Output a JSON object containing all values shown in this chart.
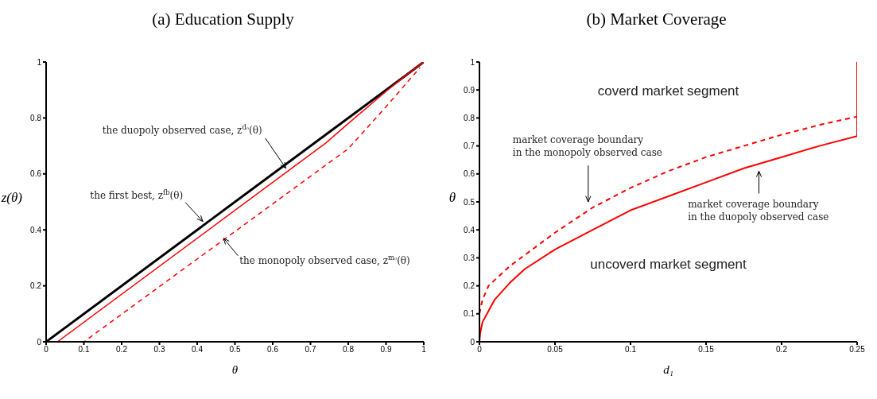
{
  "chart_data": [
    {
      "type": "line",
      "title": "(a) Education Supply",
      "xlabel": "θ",
      "ylabel": "z(θ)",
      "xlim": [
        0,
        1
      ],
      "ylim": [
        0,
        1
      ],
      "xticks": [
        0,
        0.1,
        0.2,
        0.3,
        0.4,
        0.5,
        0.6,
        0.7,
        0.8,
        0.9,
        1
      ],
      "yticks": [
        0,
        0.2,
        0.4,
        0.6,
        0.8,
        1
      ],
      "series": [
        {
          "color": "#000000",
          "line_style": "solid",
          "x": [
            0,
            1
          ],
          "values": [
            0,
            1
          ]
        },
        {
          "color": "#ff0000",
          "line_style": "solid",
          "x": [
            0,
            0.03,
            0.74,
            0.8,
            0.9,
            0.95,
            1
          ],
          "values": [
            0,
            0,
            0.71,
            0.78,
            0.895,
            0.95,
            1
          ]
        },
        {
          "color": "#ff0000",
          "line_style": "dashed",
          "x": [
            0,
            0.1,
            0.8,
            0.82,
            0.9,
            0.99
          ],
          "values": [
            0,
            0,
            0.69,
            0.72,
            0.84,
            0.98
          ]
        }
      ],
      "annotations": [
        {
          "text": "the duopoly observed case, z$^{dₒ}$(θ)",
          "x": 0.635,
          "y": 0.62
        },
        {
          "text": "the first best, z$^{fb}$(θ)",
          "x": 0.415,
          "y": 0.43
        },
        {
          "text": "the monopoly observed case, z$^{mₒ}$(θ)",
          "x": 0.47,
          "y": 0.37
        }
      ]
    },
    {
      "type": "line",
      "title": "(b) Market Coverage",
      "xlabel": "d₁",
      "ylabel": "θ",
      "xlim": [
        0,
        0.25
      ],
      "ylim": [
        0,
        1
      ],
      "xticks": [
        0,
        0.05,
        0.1,
        0.15,
        0.2,
        0.25
      ],
      "yticks": [
        0,
        0.1,
        0.2,
        0.3,
        0.4,
        0.5,
        0.6,
        0.7,
        0.8,
        0.9,
        1
      ],
      "series": [
        {
          "color": "#ff0000",
          "line_style": "solid",
          "x": [
            0,
            0.0005,
            0.002,
            0.005,
            0.01,
            0.02,
            0.03,
            0.05,
            0.075,
            0.1,
            0.125,
            0.15,
            0.175,
            0.2,
            0.225,
            0.25,
            0.25
          ],
          "values": [
            0,
            0.03,
            0.07,
            0.1,
            0.15,
            0.21,
            0.26,
            0.33,
            0.4,
            0.47,
            0.52,
            0.57,
            0.62,
            0.66,
            0.7,
            0.735,
            1
          ]
        },
        {
          "color": "#ff0000",
          "line_style": "dashed",
          "x": [
            0,
            0.002,
            0.006,
            0.02,
            0.035,
            0.05,
            0.075,
            0.1,
            0.125,
            0.15,
            0.175,
            0.2,
            0.225,
            0.25
          ],
          "values": [
            0.1,
            0.15,
            0.2,
            0.27,
            0.33,
            0.39,
            0.48,
            0.55,
            0.61,
            0.66,
            0.7,
            0.74,
            0.775,
            0.805
          ]
        }
      ],
      "annotations": [
        "coverd market segment",
        "uncoverd market segment",
        "market coverage boundary\nin the monopoly observed case",
        "market coverage boundary\nin the duopoly observed case"
      ]
    }
  ]
}
